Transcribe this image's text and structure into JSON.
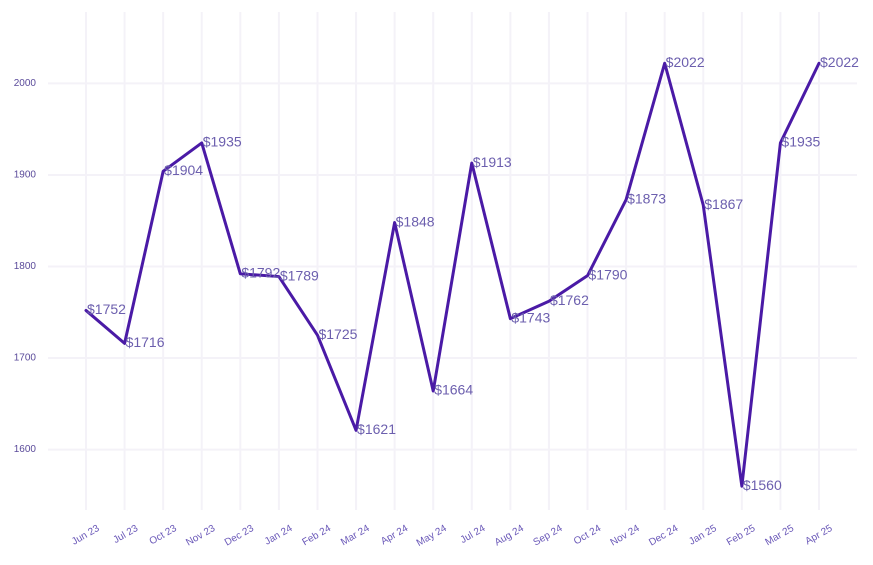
{
  "chart_data": {
    "type": "line",
    "title": "",
    "xlabel": "",
    "ylabel": "",
    "categories": [
      "Jun 23",
      "Jul 23",
      "Oct 23",
      "Nov 23",
      "Dec 23",
      "Jan 24",
      "Feb 24",
      "Mar 24",
      "Apr 24",
      "May 24",
      "Jul 24",
      "Aug 24",
      "Sep 24",
      "Oct 24",
      "Nov 24",
      "Dec 24",
      "Jan 25",
      "Feb 25",
      "Mar 25",
      "Apr 25"
    ],
    "series": [
      {
        "values": [
          1752,
          1716,
          1904,
          1935,
          1792,
          1789,
          1725,
          1621,
          1848,
          1664,
          1913,
          1743,
          1762,
          1790,
          1873,
          2022,
          1867,
          1560,
          1935,
          2022
        ],
        "color": "#4a1aa6"
      }
    ],
    "data_labels": [
      "$1752",
      "$1716",
      "$1904",
      "$1935",
      "$1792",
      "$1789",
      "$1725",
      "$1621",
      "$1848",
      "$1664",
      "$1913",
      "$1743",
      "$1762",
      "$1790",
      "$1873",
      "$2022",
      "$1867",
      "$1560",
      "$1935",
      "$2022"
    ],
    "y_ticks": [
      1600,
      1700,
      1800,
      1900,
      2000
    ],
    "ylim": [
      1534,
      2078
    ],
    "grid": true,
    "legend": "none",
    "x_tick_rotation": -30
  }
}
